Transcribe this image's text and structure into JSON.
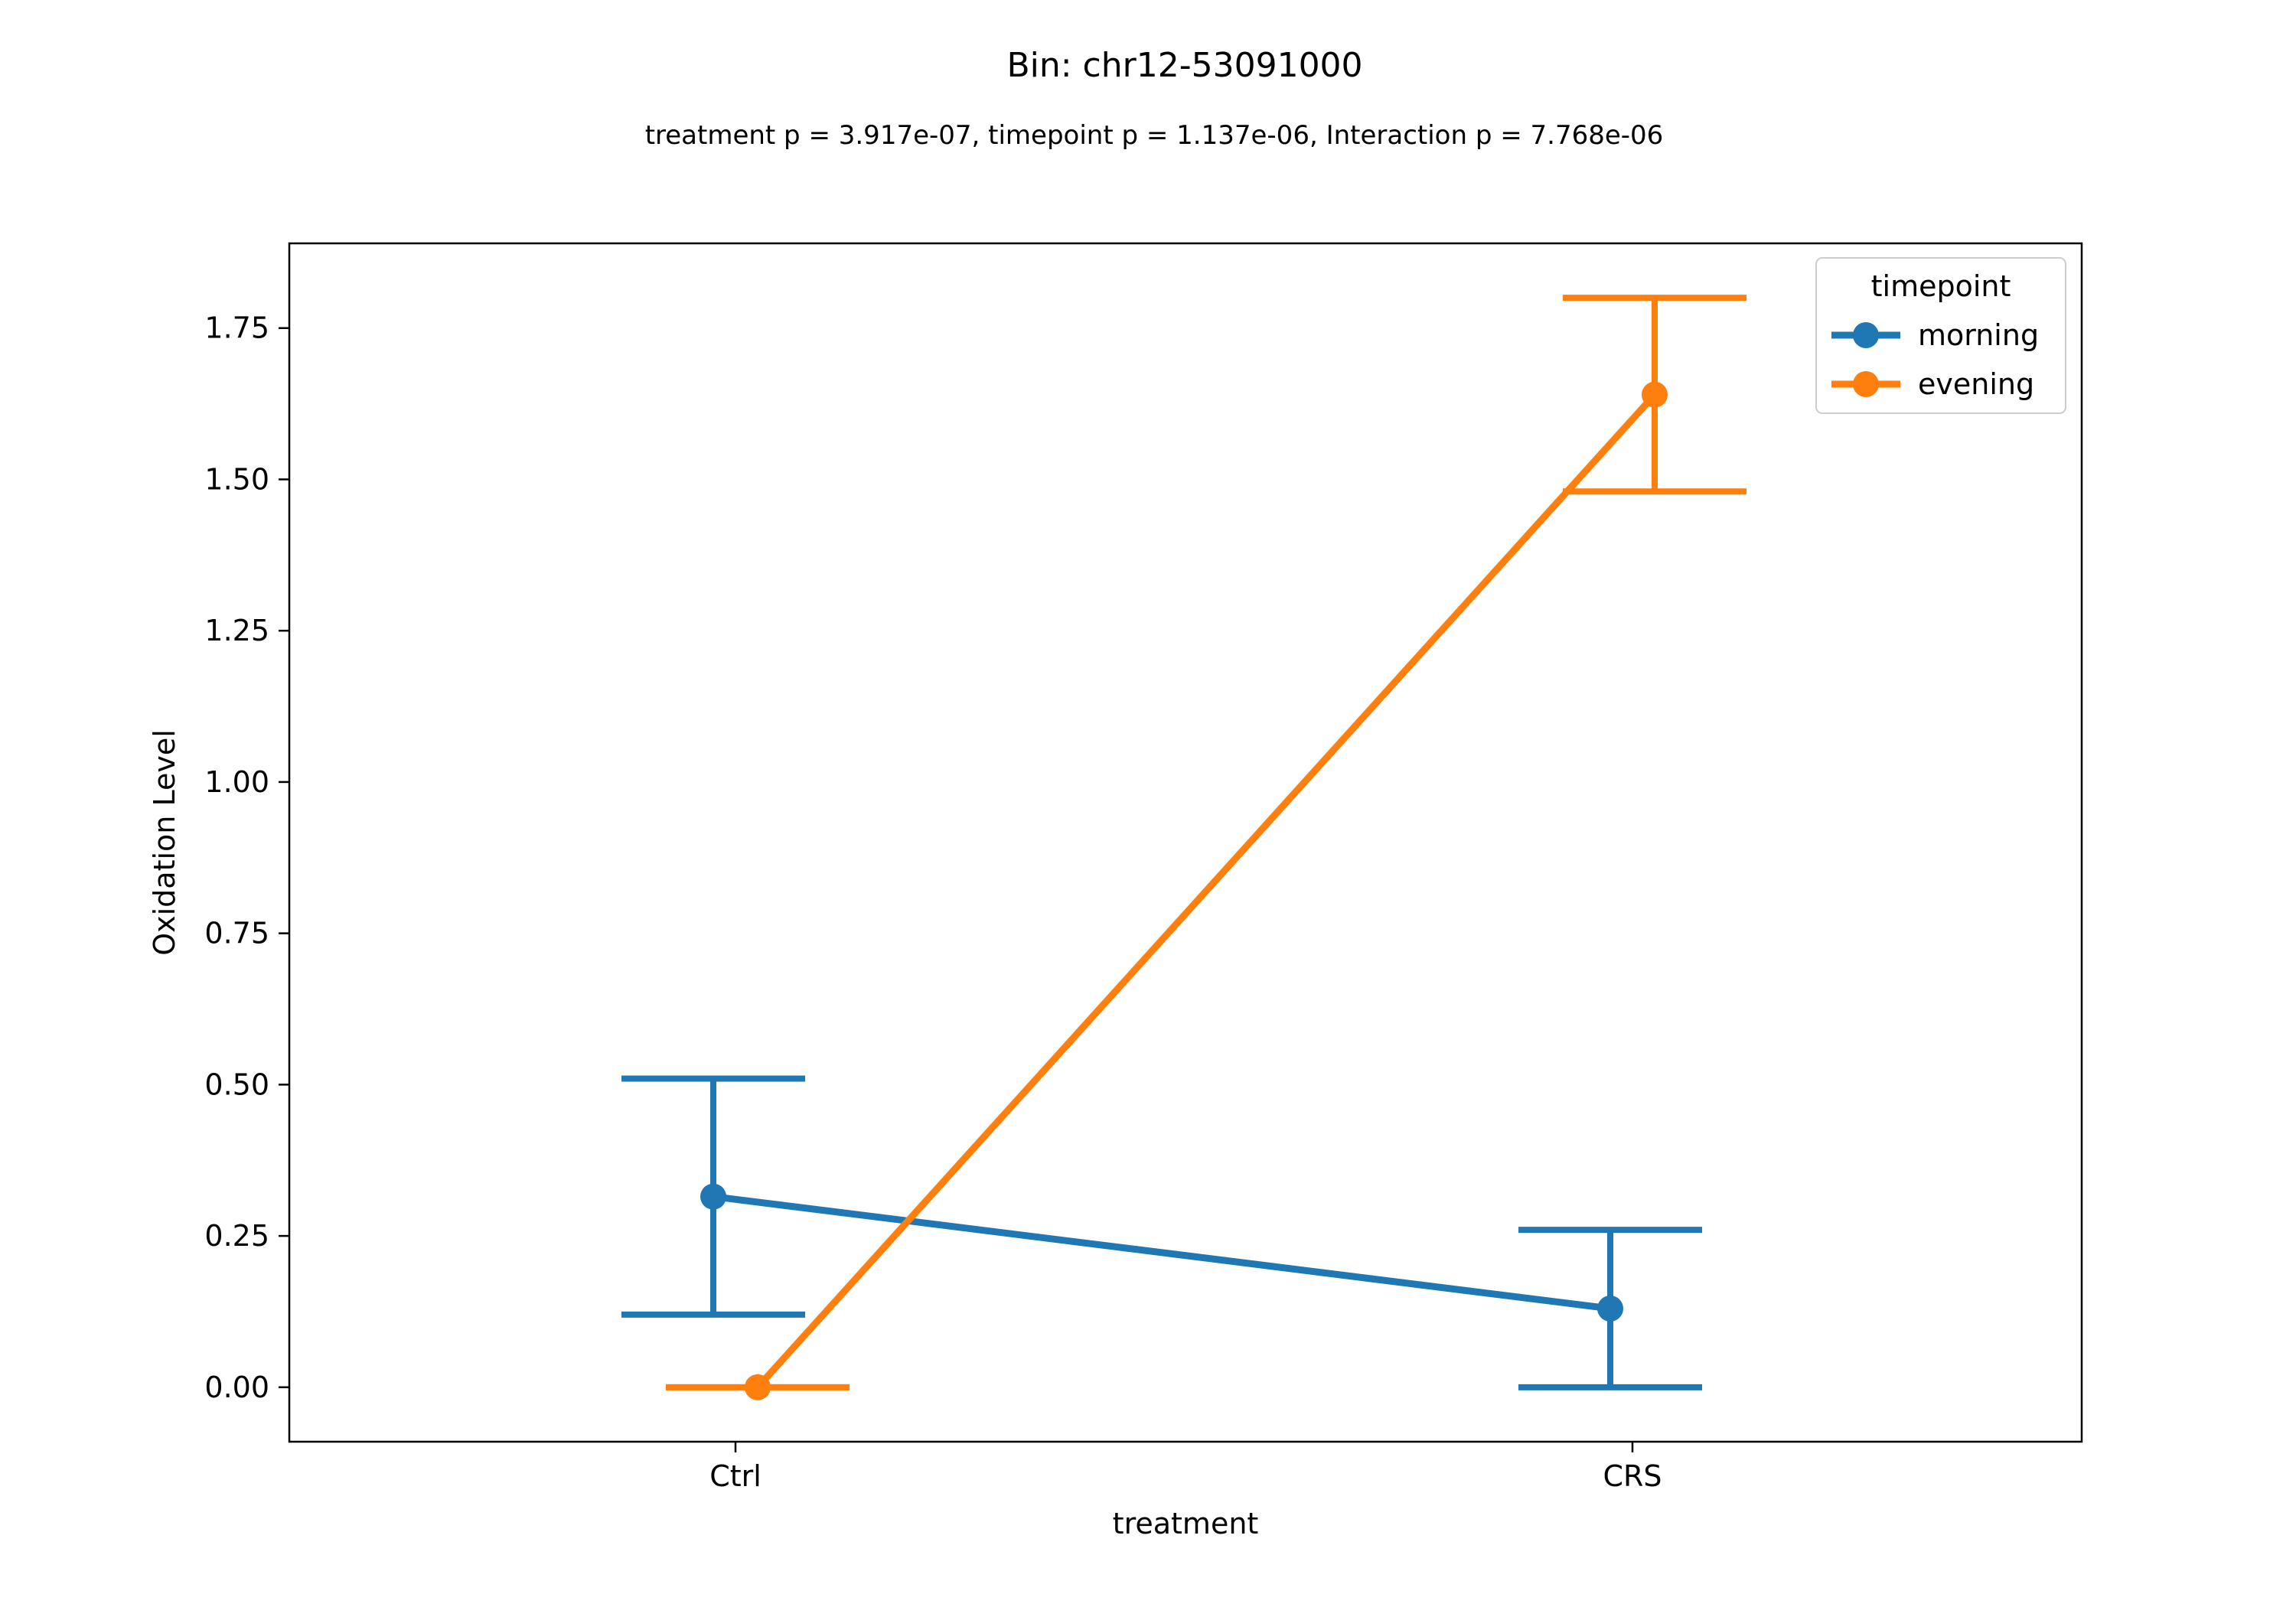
{
  "chart_data": {
    "type": "line",
    "title": "Bin: chr12-53091000",
    "subtitle": "treatment p = 3.917e-07, timepoint p = 1.137e-06, Interaction p = 7.768e-06",
    "xlabel": "treatment",
    "ylabel": "Oxidation Level",
    "categories": [
      "Ctrl",
      "CRS"
    ],
    "ylim": [
      -0.09,
      1.89
    ],
    "yticks": [
      "0.00",
      "0.25",
      "0.50",
      "0.75",
      "1.00",
      "1.25",
      "1.50",
      "1.75"
    ],
    "grid": false,
    "legend": {
      "title": "timepoint",
      "placement": "top-right"
    },
    "series": [
      {
        "name": "morning",
        "color": "#1f77b4",
        "values": [
          0.315,
          0.13
        ],
        "error_low": [
          0.12,
          0.0
        ],
        "error_high": [
          0.51,
          0.26
        ]
      },
      {
        "name": "evening",
        "color": "#ff7f0e",
        "values": [
          0.0,
          1.64
        ],
        "error_low": [
          0.0,
          1.48
        ],
        "error_high": [
          0.0,
          1.8
        ]
      }
    ]
  }
}
